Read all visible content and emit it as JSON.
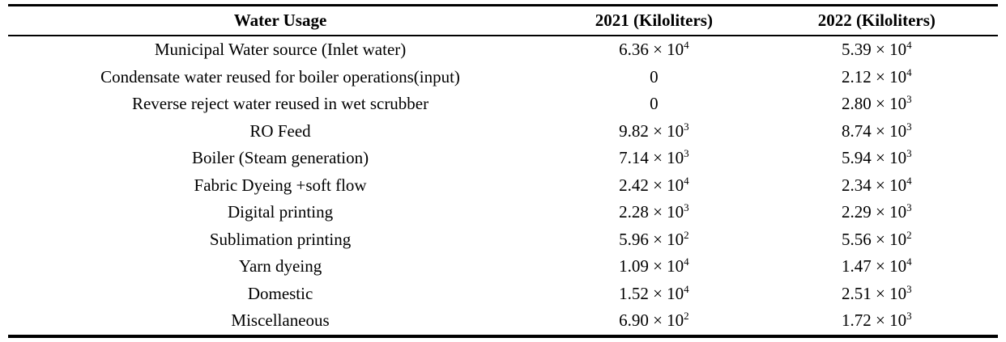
{
  "table": {
    "headers": [
      "Water Usage",
      "2021 (Kiloliters)",
      "2022 (Kiloliters)"
    ],
    "rows": [
      {
        "label": "Municipal Water source (Inlet water)",
        "y2021": {
          "base": "6.36 × 10",
          "exp": "4"
        },
        "y2022": {
          "base": "5.39 × 10",
          "exp": "4"
        }
      },
      {
        "label": "Condensate water reused for boiler operations(input)",
        "y2021": {
          "base": "0",
          "exp": ""
        },
        "y2022": {
          "base": "2.12 × 10",
          "exp": "4"
        }
      },
      {
        "label": "Reverse reject water reused in wet scrubber",
        "y2021": {
          "base": "0",
          "exp": ""
        },
        "y2022": {
          "base": "2.80 × 10",
          "exp": "3"
        }
      },
      {
        "label": "RO Feed",
        "y2021": {
          "base": "9.82 × 10",
          "exp": "3"
        },
        "y2022": {
          "base": "8.74 × 10",
          "exp": "3"
        }
      },
      {
        "label": "Boiler (Steam generation)",
        "y2021": {
          "base": "7.14 × 10",
          "exp": "3"
        },
        "y2022": {
          "base": "5.94 × 10",
          "exp": "3"
        }
      },
      {
        "label": "Fabric Dyeing +soft flow",
        "y2021": {
          "base": "2.42 × 10",
          "exp": "4"
        },
        "y2022": {
          "base": "2.34 × 10",
          "exp": "4"
        }
      },
      {
        "label": "Digital printing",
        "y2021": {
          "base": "2.28 × 10",
          "exp": "3"
        },
        "y2022": {
          "base": "2.29 × 10",
          "exp": "3"
        }
      },
      {
        "label": "Sublimation printing",
        "y2021": {
          "base": "5.96 × 10",
          "exp": "2"
        },
        "y2022": {
          "base": "5.56 × 10",
          "exp": "2"
        }
      },
      {
        "label": "Yarn dyeing",
        "y2021": {
          "base": "1.09 × 10",
          "exp": "4"
        },
        "y2022": {
          "base": "1.47 × 10",
          "exp": "4"
        }
      },
      {
        "label": "Domestic",
        "y2021": {
          "base": "1.52 × 10",
          "exp": "4"
        },
        "y2022": {
          "base": "2.51 × 10",
          "exp": "3"
        }
      },
      {
        "label": "Miscellaneous",
        "y2021": {
          "base": "6.90 × 10",
          "exp": "2"
        },
        "y2022": {
          "base": "1.72 × 10",
          "exp": "3"
        }
      }
    ]
  },
  "chart_data": {
    "type": "table",
    "title": "Water Usage",
    "columns": [
      "Water Usage",
      "2021 (Kiloliters)",
      "2022 (Kiloliters)"
    ],
    "categories": [
      "Municipal Water source (Inlet water)",
      "Condensate water reused for boiler operations(input)",
      "Reverse reject water reused in wet scrubber",
      "RO Feed",
      "Boiler (Steam generation)",
      "Fabric Dyeing +soft flow",
      "Digital printing",
      "Sublimation printing",
      "Yarn dyeing",
      "Domestic",
      "Miscellaneous"
    ],
    "series": [
      {
        "name": "2021 (Kiloliters)",
        "values": [
          63600,
          0,
          0,
          9820,
          7140,
          24200,
          2280,
          596,
          10900,
          15200,
          690
        ]
      },
      {
        "name": "2022 (Kiloliters)",
        "values": [
          53900,
          21200,
          2800,
          8740,
          5940,
          23400,
          2290,
          556,
          14700,
          2510,
          1720
        ]
      }
    ],
    "colors": {
      "text": "#000000",
      "background": "#ffffff",
      "rule": "#000000"
    }
  }
}
